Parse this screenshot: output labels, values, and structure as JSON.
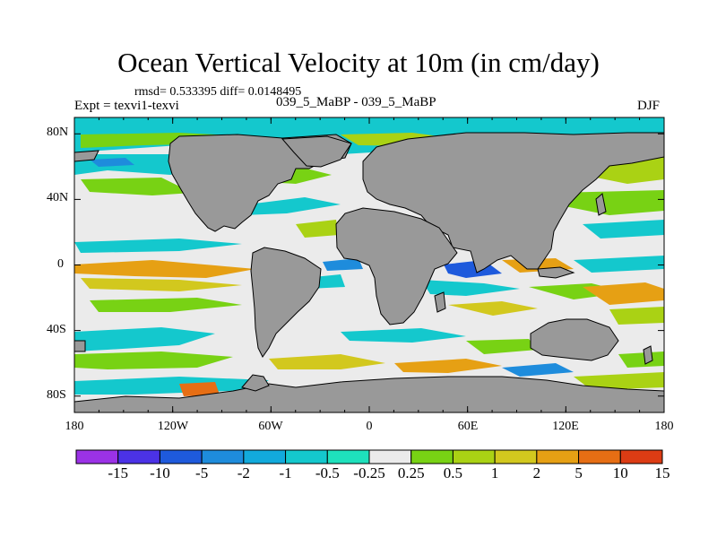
{
  "title": "Ocean Vertical Velocity at 10m (in cm/day)",
  "stats": "rmsd= 0.533395 diff= 0.0148495",
  "experiment": "Expt = texvi1-texvi",
  "case": "039_5_MaBP - 039_5_MaBP",
  "season": "DJF",
  "y_axis_labels": [
    "80N",
    "40N",
    "0",
    "40S",
    "80S"
  ],
  "x_axis_labels": [
    "180",
    "120W",
    "60W",
    "0",
    "60E",
    "120E",
    "180"
  ],
  "colorbar": {
    "labels": [
      "-15",
      "-10",
      "-5",
      "-2",
      "-1",
      "-0.5",
      "-0.25",
      "0.25",
      "0.5",
      "1",
      "2",
      "5",
      "10",
      "15"
    ],
    "colors": [
      "#9b32e6",
      "#4b32e6",
      "#1e5adc",
      "#1e8cdc",
      "#12aadc",
      "#14c8cd",
      "#1ee1bc",
      "#ebebeb",
      "#78d214",
      "#aad214",
      "#d2c81e",
      "#e6a014",
      "#e66e14",
      "#dc3c14"
    ]
  },
  "land_color": "#999999",
  "neutral_color": "#ebebeb"
}
